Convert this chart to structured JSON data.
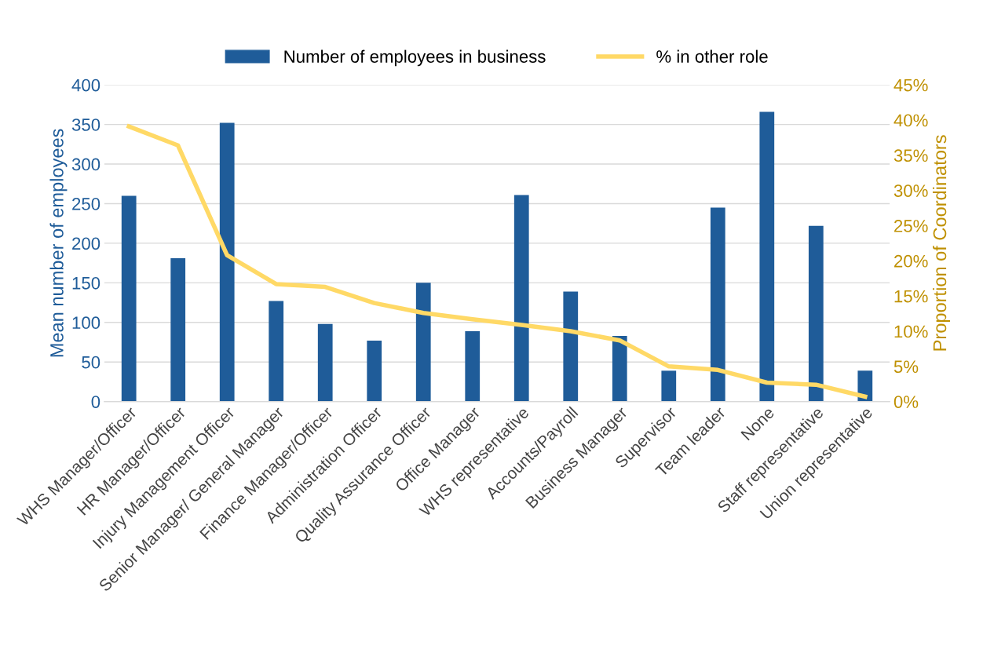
{
  "chart_data": {
    "type": "bar",
    "ylabel": "Mean number of employees",
    "y2label": "Proportion of Coordinators",
    "categories": [
      "WHS Manager/Officer",
      "HR Manager/Officer",
      "Injury Management Officer",
      "Senior Manager/ General Manager",
      "Finance Manager/Officer",
      "Administration Officer",
      "Quality Assurance Officer",
      "Office Manager",
      "WHS representative",
      "Accounts/Payroll",
      "Business Manager",
      "Supervisor",
      "Team leader",
      "None",
      "Staff representative",
      "Union representative"
    ],
    "series": [
      {
        "name": "Number of employees in business",
        "color": "#1f5c99",
        "values": [
          260,
          181,
          352,
          127,
          98,
          77,
          150,
          89,
          261,
          139,
          83,
          39,
          245,
          366,
          222,
          39
        ]
      },
      {
        "name": "% in other role",
        "type": "line",
        "axis": "y2",
        "color": "#ffd966",
        "values": [
          39.1,
          36.4,
          20.8,
          16.7,
          16.3,
          14.0,
          12.6,
          11.7,
          10.9,
          10.0,
          8.7,
          5.0,
          4.5,
          2.7,
          2.4,
          0.7
        ]
      }
    ],
    "ylim": [
      0,
      400
    ],
    "yticks": [
      0,
      50,
      100,
      150,
      200,
      250,
      300,
      350,
      400
    ],
    "y2lim": [
      0,
      45
    ],
    "y2ticks": [
      {
        "value": 0,
        "label": "0%"
      },
      {
        "value": 5,
        "label": "5%"
      },
      {
        "value": 10,
        "label": "10%"
      },
      {
        "value": 15,
        "label": "15%"
      },
      {
        "value": 20,
        "label": "20%"
      },
      {
        "value": 25,
        "label": "25%"
      },
      {
        "value": 30,
        "label": "30%"
      },
      {
        "value": 35,
        "label": "35%"
      },
      {
        "value": 40,
        "label": "40%"
      },
      {
        "value": 45,
        "label": "45%"
      }
    ],
    "grid": "y",
    "legend": "top",
    "marker": "none",
    "line_style": "solid"
  }
}
